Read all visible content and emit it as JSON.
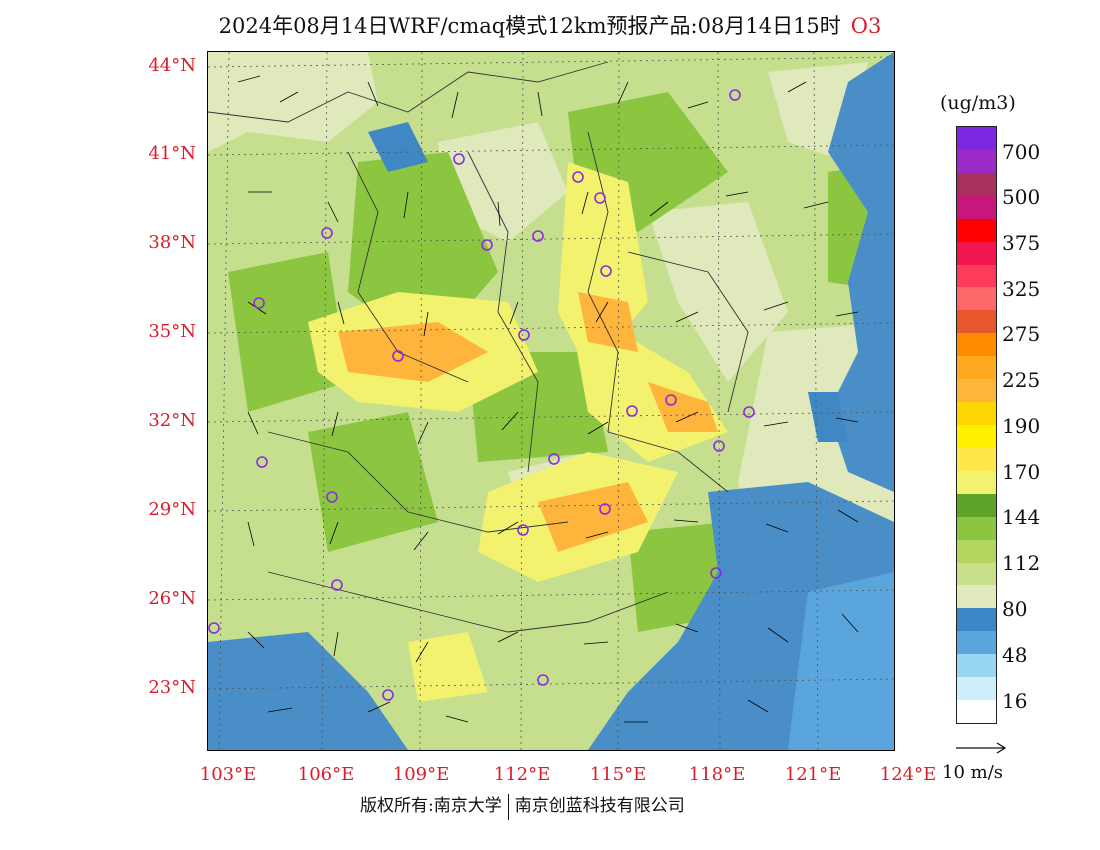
{
  "title": {
    "main": "2024年08月14日WRF/cmaq模式12km预报产品:08月14日15时",
    "species": "O3"
  },
  "axes": {
    "lat_labels": [
      "44°N",
      "41°N",
      "38°N",
      "35°N",
      "32°N",
      "29°N",
      "26°N",
      "23°N"
    ],
    "lon_labels": [
      "103°E",
      "106°E",
      "109°E",
      "112°E",
      "115°E",
      "118°E",
      "121°E",
      "124°E"
    ]
  },
  "colorbar": {
    "unit": "(ug/m3)",
    "levels": [
      "700",
      "500",
      "375",
      "325",
      "275",
      "225",
      "190",
      "170",
      "144",
      "112",
      "80",
      "48",
      "16"
    ],
    "colors": [
      "#7b28e0",
      "#9b2ac9",
      "#a8305c",
      "#c8177c",
      "#ff0000",
      "#f2144e",
      "#ff3b5c",
      "#ff6868",
      "#e8562e",
      "#ff8c00",
      "#ffaa1e",
      "#ffb43c",
      "#ffd700",
      "#fff200",
      "#ffe64a",
      "#f2f26e",
      "#5ea32a",
      "#8cc640",
      "#b4d660",
      "#c8e08a",
      "#dfe9bc",
      "#3d86c6",
      "#5aa6dc",
      "#98d6f2",
      "#cdeefa",
      "#ffffff"
    ]
  },
  "legend": {
    "vector_label": "10 m/s"
  },
  "footer": {
    "copyright_left": "版权所有:南京大学",
    "copyright_right": "南京创蓝科技有限公司"
  },
  "map": {
    "land_color": "#c5df8e",
    "sea_color": "#4a8ec8",
    "lake_color": "#3f88c4"
  }
}
